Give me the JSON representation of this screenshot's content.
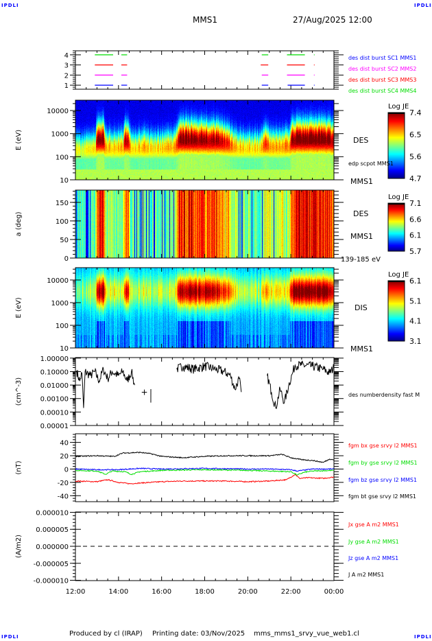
{
  "header": {
    "title": "MMS1",
    "datetime": "27/Aug/2025 12:00",
    "corner_mark": "IPDLI"
  },
  "footer": {
    "produced": "Produced by cl (IRAP)",
    "printing": "Printing date: 03/Nov/2025",
    "file": "mms_mms1_srvy_vue_web1.cl"
  },
  "x_axis": {
    "range_hours": [
      12,
      24
    ],
    "ticks": [
      "12:00",
      "14:00",
      "16:00",
      "18:00",
      "20:00",
      "22:00",
      "00:00"
    ]
  },
  "chart_data": [
    {
      "id": "burst",
      "type": "line",
      "ylabel": "",
      "ylim": [
        0.6,
        4.4
      ],
      "scale": "linear",
      "yticks": [
        1,
        2,
        3,
        4
      ],
      "ytick_labels": [
        "1",
        "2",
        "3",
        "4"
      ],
      "legend": [
        {
          "label": "des dist burst SC1 MMS1",
          "color": "#0000ff"
        },
        {
          "label": "des dist burst SC2 MMS2",
          "color": "#ff00ff"
        },
        {
          "label": "des dist burst SC3 MMS3",
          "color": "#ff0000"
        },
        {
          "label": "des dist burst SC4 MMS4",
          "color": "#00dd00"
        }
      ],
      "series": [
        {
          "level": 1,
          "color": "#0000ff",
          "intervals": [
            [
              12.9,
              13.75
            ],
            [
              14.13,
              14.4
            ],
            [
              20.65,
              20.95
            ],
            [
              21.85,
              22.65
            ],
            [
              23.07,
              23.09
            ]
          ]
        },
        {
          "level": 2,
          "color": "#ff00ff",
          "intervals": [
            [
              12.9,
              13.75
            ],
            [
              14.13,
              14.4
            ],
            [
              20.65,
              20.95
            ],
            [
              21.82,
              22.65
            ],
            [
              23.07,
              23.09
            ]
          ]
        },
        {
          "level": 3,
          "color": "#ff0000",
          "intervals": [
            [
              12.9,
              13.75
            ],
            [
              14.13,
              14.4
            ],
            [
              20.6,
              20.95
            ],
            [
              21.82,
              22.65
            ],
            [
              23.07,
              23.09
            ]
          ]
        },
        {
          "level": 4,
          "color": "#00dd00",
          "intervals": [
            [
              12.9,
              13.75
            ],
            [
              14.13,
              14.4
            ],
            [
              20.65,
              20.95
            ],
            [
              21.82,
              22.65
            ],
            [
              23.07,
              23.09
            ]
          ]
        }
      ]
    },
    {
      "id": "des-energy",
      "type": "heatmap",
      "ylabel": "E (eV)",
      "scale": "log",
      "ylim": [
        10,
        28000
      ],
      "yticks": [
        10,
        100,
        1000,
        10000
      ],
      "ytick_labels": [
        "10",
        "100",
        "1000",
        "10000"
      ],
      "right_labels": [
        "DES",
        "edp scpot MMS1",
        "MMS1"
      ],
      "colorbar": {
        "title": "Log JE",
        "range": [
          4.7,
          7.4
        ],
        "tick_labels": [
          "7.4",
          "6.5",
          "5.6",
          "4.7"
        ]
      }
    },
    {
      "id": "des-pitch",
      "type": "heatmap",
      "ylabel": "a (deg)",
      "scale": "linear",
      "ylim": [
        0,
        183
      ],
      "yticks": [
        0,
        50,
        100,
        150
      ],
      "ytick_labels": [
        "0",
        "50",
        "100",
        "150"
      ],
      "right_labels": [
        "DES",
        "MMS1",
        "139-185 eV"
      ],
      "colorbar": {
        "title": "Log JE",
        "range": [
          5.7,
          7.1
        ],
        "tick_labels": [
          "7.1",
          "6.6",
          "6.1",
          "5.7"
        ]
      }
    },
    {
      "id": "dis-energy",
      "type": "heatmap",
      "ylabel": "E (eV)",
      "scale": "log",
      "ylim": [
        10,
        35000
      ],
      "yticks": [
        10,
        100,
        1000,
        10000
      ],
      "ytick_labels": [
        "10",
        "100",
        "1000",
        "10000"
      ],
      "right_labels": [
        "DIS",
        "MMS1"
      ],
      "colorbar": {
        "title": "Log JE",
        "range": [
          3.1,
          6.1
        ],
        "tick_labels": [
          "6.1",
          "5.1",
          "4.1",
          "3.1"
        ]
      }
    },
    {
      "id": "density",
      "type": "line",
      "ylabel": "(cm^-3)",
      "scale": "log",
      "ylim": [
        1e-05,
        1.1
      ],
      "yticks": [
        1,
        0.1,
        0.01,
        0.001,
        0.0001,
        1e-05
      ],
      "ytick_labels": [
        "1.00000",
        "0.10000",
        "0.01000",
        "0.00100",
        "0.00010",
        "0.00001"
      ],
      "right_labels": [
        "des numberdensity fast M"
      ],
      "series": [
        {
          "color": "#000000",
          "points": [
            [
              12.05,
              0.12
            ],
            [
              12.2,
              0.02
            ],
            [
              12.3,
              0.08
            ],
            [
              12.38,
              0.0002
            ],
            [
              12.45,
              0.1
            ],
            [
              12.7,
              0.05
            ],
            [
              12.9,
              0.1
            ],
            [
              13.1,
              0.02
            ],
            [
              13.3,
              0.15
            ],
            [
              13.5,
              0.03
            ],
            [
              13.7,
              0.1
            ],
            [
              14.0,
              0.05
            ],
            [
              14.2,
              0.1
            ],
            [
              14.4,
              0.02
            ],
            [
              14.6,
              0.1
            ],
            [
              14.75,
              0.01
            ],
            null,
            [
              15.5,
              0.005
            ],
            [
              15.5,
              0.0005
            ],
            null,
            [
              16.7,
              0.15
            ],
            [
              17.0,
              0.25
            ],
            [
              17.5,
              0.15
            ],
            [
              18.0,
              0.25
            ],
            [
              18.5,
              0.15
            ],
            [
              18.9,
              0.1
            ],
            [
              19.2,
              0.05
            ],
            [
              19.4,
              0.005
            ],
            [
              19.6,
              0.03
            ],
            [
              19.7,
              0.003
            ],
            null,
            [
              20.9,
              0.05
            ],
            [
              21.1,
              0.003
            ],
            [
              21.3,
              0.0002
            ],
            [
              21.5,
              0.005
            ],
            [
              21.7,
              0.0005
            ],
            [
              21.9,
              0.01
            ],
            [
              22.1,
              0.1
            ],
            [
              22.2,
              0.3
            ],
            [
              22.5,
              0.3
            ],
            [
              23.0,
              0.25
            ],
            [
              23.5,
              0.15
            ],
            [
              23.8,
              0.08
            ],
            [
              24.0,
              0.2
            ]
          ]
        }
      ],
      "markers": [
        {
          "x": 15.2,
          "y": 0.003,
          "symbol": "+"
        }
      ]
    },
    {
      "id": "bfield",
      "type": "line",
      "ylabel": "(nT)",
      "scale": "linear",
      "ylim": [
        -49,
        53
      ],
      "yticks": [
        -40,
        -20,
        0,
        20,
        40
      ],
      "ytick_labels": [
        "-40",
        "-20",
        "0",
        "20",
        "40"
      ],
      "right_labels": [
        "fgm bx gse srvy l2 MMS1",
        "fgm by gse srvy l2 MMS1",
        "fgm bz gse srvy l2 MMS1",
        "fgm bt gse srvy l2 MMS1"
      ],
      "series": [
        {
          "name": "fgm bx gse srvy l2 MMS1",
          "color": "#ff0000",
          "points": [
            [
              12,
              -18
            ],
            [
              13,
              -19
            ],
            [
              13.5,
              -16
            ],
            [
              14,
              -20
            ],
            [
              14.5,
              -22
            ],
            [
              15,
              -21
            ],
            [
              16,
              -19
            ],
            [
              17,
              -18
            ],
            [
              18,
              -18
            ],
            [
              19,
              -18
            ],
            [
              20,
              -19
            ],
            [
              21,
              -18
            ],
            [
              21.8,
              -16
            ],
            [
              22.2,
              -8
            ],
            [
              22.4,
              -14
            ],
            [
              22.8,
              -13
            ],
            [
              23.5,
              -14
            ],
            [
              24,
              -12
            ]
          ]
        },
        {
          "name": "fgm by gse srvy l2 MMS1",
          "color": "#00dd00",
          "points": [
            [
              12,
              -2
            ],
            [
              13,
              -3
            ],
            [
              13.4,
              -8
            ],
            [
              13.7,
              -3
            ],
            [
              14.3,
              -4
            ],
            [
              14.6,
              -8
            ],
            [
              15,
              -4
            ],
            [
              16,
              -2
            ],
            [
              18,
              -1
            ],
            [
              20,
              -2
            ],
            [
              21,
              -3
            ],
            [
              22,
              -4
            ],
            [
              22.3,
              -9
            ],
            [
              22.6,
              -5
            ],
            [
              23,
              -3
            ],
            [
              24,
              -2
            ]
          ]
        },
        {
          "name": "fgm bz gse srvy l2 MMS1",
          "color": "#0000ff",
          "points": [
            [
              12,
              0
            ],
            [
              13,
              -1
            ],
            [
              14,
              -1
            ],
            [
              15,
              1
            ],
            [
              16,
              0
            ],
            [
              18,
              1
            ],
            [
              20,
              0
            ],
            [
              21,
              0
            ],
            [
              22,
              -1
            ],
            [
              22.3,
              -3
            ],
            [
              23,
              0
            ],
            [
              24,
              0
            ]
          ]
        },
        {
          "name": "fgm bt gse srvy l2 MMS1",
          "color": "#000000",
          "points": [
            [
              12,
              19
            ],
            [
              13,
              20
            ],
            [
              13.8,
              19
            ],
            [
              14.2,
              24
            ],
            [
              15,
              25
            ],
            [
              15.5,
              23
            ],
            [
              16,
              19
            ],
            [
              17,
              17
            ],
            [
              18,
              19
            ],
            [
              19,
              20
            ],
            [
              20,
              20
            ],
            [
              21,
              20
            ],
            [
              21.6,
              22
            ],
            [
              22,
              17
            ],
            [
              22.5,
              14
            ],
            [
              23,
              13
            ],
            [
              23.5,
              10
            ],
            [
              23.8,
              15
            ],
            [
              24,
              14
            ]
          ]
        }
      ]
    },
    {
      "id": "current",
      "type": "line",
      "ylabel": "(A/m2)",
      "scale": "linear",
      "ylim": [
        -1.01e-05,
        1.01e-05
      ],
      "yticks": [
        1e-05,
        5e-06,
        0,
        -5e-06,
        -1e-05
      ],
      "ytick_labels": [
        "0.000010",
        "0.000005",
        "0.000000",
        "-0.000005",
        "-0.000010"
      ],
      "right_labels": [
        "Jx gse A m2 MMS1",
        "Jy gse A m2 MMS1",
        "Jz gse A m2 MMS1",
        "J A m2 MMS1"
      ],
      "right_label_colors": [
        "#ff0000",
        "#00dd00",
        "#0000ff",
        "#000000"
      ],
      "series": [
        {
          "color": "#000000",
          "style": "dashed",
          "points": [
            [
              12,
              0
            ],
            [
              24,
              0
            ]
          ]
        }
      ]
    }
  ]
}
